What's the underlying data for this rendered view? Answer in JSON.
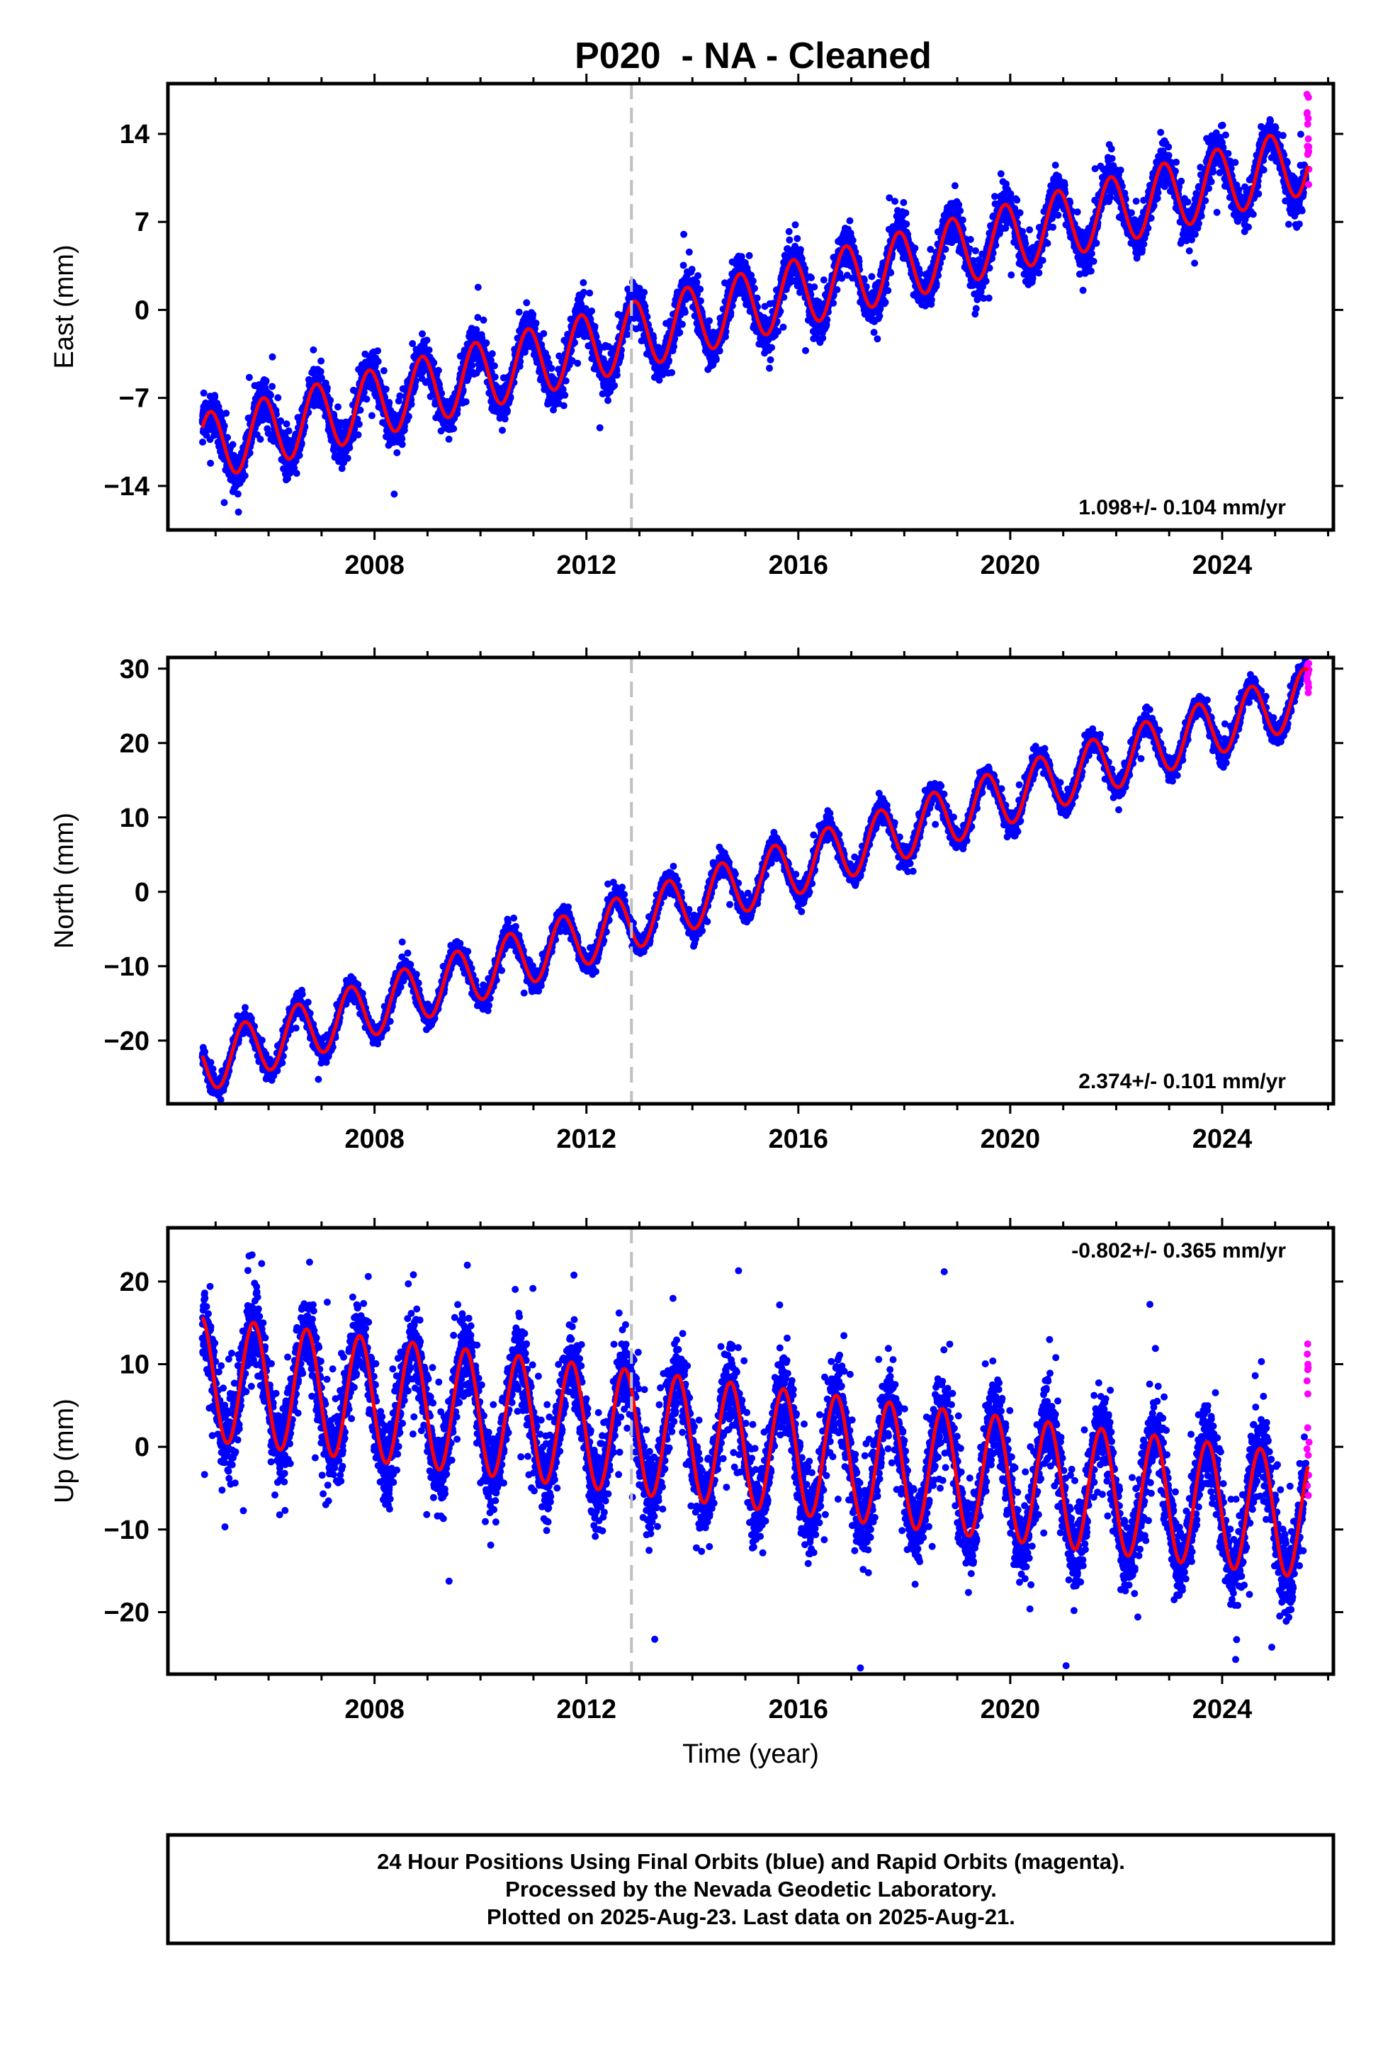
{
  "chart_data": [
    {
      "type": "scatter",
      "panel_id": "east",
      "title": "P020  - NA - Cleaned",
      "xlabel": "",
      "ylabel": "East (mm)",
      "xlim": [
        2004.1,
        2026.1
      ],
      "ylim": [
        -17.5,
        18
      ],
      "yticks": [
        -14,
        -7,
        0,
        7,
        14
      ],
      "xticks": [
        2008,
        2012,
        2016,
        2020,
        2024
      ],
      "rate_text": "1.098+/- 0.104 mm/yr",
      "rate_position": "bottom-right",
      "event_line_x": 2012.85,
      "model": {
        "start": 2004.75,
        "end": 2025.62,
        "intercept_at_2012": -3.0,
        "rate": 1.098,
        "annual_amp": 2.7,
        "phase_peak": 0.9
      },
      "final_orbits": {
        "color": "#0000ff",
        "start": 2004.75,
        "end": 2025.58,
        "noise": 1.0,
        "spikes": 1.2
      },
      "rapid_orbits": {
        "color": "#ff00ff",
        "start": 2025.6,
        "end": 2025.64,
        "y_range": [
          9.5,
          17.5
        ]
      },
      "model_color": "#ff0000"
    },
    {
      "type": "scatter",
      "panel_id": "north",
      "title": "",
      "xlabel": "",
      "ylabel": "North (mm)",
      "xlim": [
        2004.1,
        2026.1
      ],
      "ylim": [
        -28.5,
        31.5
      ],
      "yticks": [
        -20,
        -10,
        0,
        10,
        20,
        30
      ],
      "xticks": [
        2008,
        2012,
        2016,
        2020,
        2024
      ],
      "rate_text": "2.374+/- 0.101 mm/yr",
      "rate_position": "bottom-right",
      "event_line_x": 2012.85,
      "model": {
        "start": 2004.75,
        "end": 2025.62,
        "intercept_at_2012": -6.0,
        "rate": 2.374,
        "annual_amp": 3.8,
        "phase_peak": 0.55
      },
      "final_orbits": {
        "color": "#0000ff",
        "start": 2004.75,
        "end": 2025.58,
        "noise": 0.9,
        "spikes": 1.0
      },
      "rapid_orbits": {
        "color": "#ff00ff",
        "start": 2025.6,
        "end": 2025.64,
        "y_range": [
          26.5,
          31
        ]
      },
      "model_color": "#ff0000"
    },
    {
      "type": "scatter",
      "panel_id": "up",
      "title": "",
      "xlabel": "Time (year)",
      "ylabel": "Up (mm)",
      "xlim": [
        2004.1,
        2026.1
      ],
      "ylim": [
        -27.5,
        26.5
      ],
      "yticks": [
        -20,
        -10,
        0,
        10,
        20
      ],
      "xticks": [
        2008,
        2012,
        2016,
        2020,
        2024
      ],
      "rate_text": "-0.802+/- 0.365 mm/yr",
      "rate_position": "top-right",
      "event_line_x": 2012.85,
      "model": {
        "start": 2004.75,
        "end": 2025.62,
        "intercept_at_2012": 2.5,
        "rate": -0.802,
        "annual_amp": 7.5,
        "phase_peak": 0.72
      },
      "final_orbits": {
        "color": "#0000ff",
        "start": 2004.75,
        "end": 2025.58,
        "noise": 3.2,
        "spikes": 4.5
      },
      "rapid_orbits": {
        "color": "#ff00ff",
        "start": 2025.6,
        "end": 2025.64,
        "y_range": [
          -6,
          13.5
        ]
      },
      "model_color": "#ff0000"
    }
  ],
  "footer": {
    "line1": "24 Hour Positions Using Final Orbits (blue) and Rapid Orbits (magenta).",
    "line2": "Processed by the Nevada Geodetic Laboratory.",
    "line3": "Plotted on 2025-Aug-23. Last data on 2025-Aug-21."
  }
}
